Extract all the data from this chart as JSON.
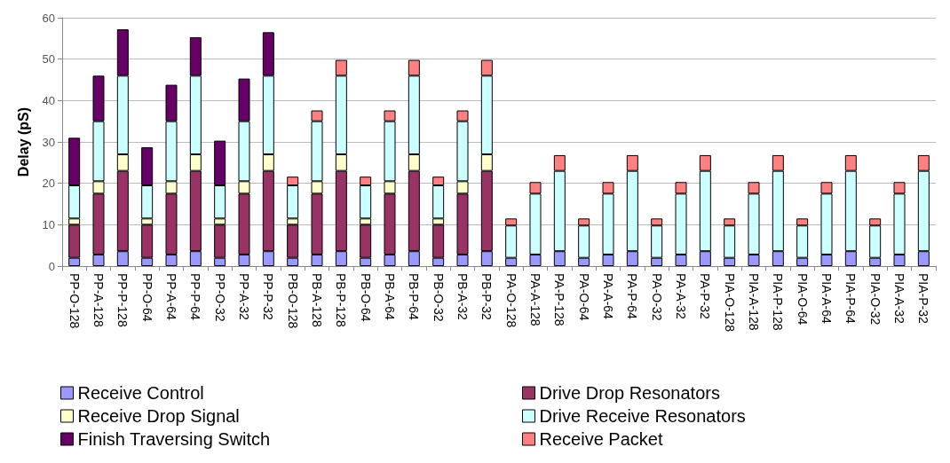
{
  "chart_data": {
    "type": "bar",
    "stacked": true,
    "ylabel": "Delay (pS)",
    "ylim": [
      0,
      60
    ],
    "yticks": [
      0,
      10,
      20,
      30,
      40,
      50,
      60
    ],
    "grid": "y",
    "legend": "bottom",
    "categories": [
      "PP-O-128",
      "PP-A-128",
      "PP-P-128",
      "PP-O-64",
      "PP-A-64",
      "PP-P-64",
      "PP-O-32",
      "PP-A-32",
      "PP-P-32",
      "PB-O-128",
      "PB-A-128",
      "PB-P-128",
      "PB-O-64",
      "PB-A-64",
      "PB-P-64",
      "PB-O-32",
      "PB-A-32",
      "PB-P-32",
      "PA-O-128",
      "PA-A-128",
      "PA-P-128",
      "PA-O-64",
      "PA-A-64",
      "PA-P-64",
      "PA-O-32",
      "PA-A-32",
      "PA-P-32",
      "PIA-O-128",
      "PIA-A-128",
      "PIA-P-128",
      "PIA-O-64",
      "PIA-A-64",
      "PIA-P-64",
      "PIA-O-32",
      "PIA-A-32",
      "PIA-P-32"
    ],
    "series": [
      {
        "name": "Receive Control",
        "color": "#9999ff",
        "values": [
          2,
          2.8,
          3.6,
          2,
          2.8,
          3.6,
          2,
          2.8,
          3.6,
          2,
          2.8,
          3.6,
          2,
          2.8,
          3.6,
          2,
          2.8,
          3.6,
          2,
          2.8,
          3.6,
          2,
          2.8,
          3.6,
          2,
          2.8,
          3.6,
          2,
          2.8,
          3.6,
          2,
          2.8,
          3.6,
          2,
          2.8,
          3.6
        ]
      },
      {
        "name": "Drive Drop Resonators",
        "color": "#993366",
        "values": [
          8,
          14.7,
          19.4,
          8,
          14.7,
          19.4,
          8,
          14.7,
          19.4,
          8,
          14.7,
          19.4,
          8,
          14.7,
          19.4,
          8,
          14.7,
          19.4,
          0,
          0,
          0,
          0,
          0,
          0,
          0,
          0,
          0,
          0,
          0,
          0,
          0,
          0,
          0,
          0,
          0,
          0
        ]
      },
      {
        "name": "Receive Drop Signal",
        "color": "#ffffcc",
        "values": [
          1.5,
          3,
          4,
          1.5,
          3,
          4,
          1.5,
          3,
          4,
          1.5,
          3,
          4,
          1.5,
          3,
          4,
          1.5,
          3,
          4,
          0,
          0,
          0,
          0,
          0,
          0,
          0,
          0,
          0,
          0,
          0,
          0,
          0,
          0,
          0,
          0,
          0,
          0
        ]
      },
      {
        "name": "Drive Receive Resonators",
        "color": "#ccffff",
        "values": [
          8,
          14.5,
          19,
          8,
          14.5,
          19,
          8,
          14.5,
          19,
          8,
          14.5,
          19,
          8,
          14.5,
          19,
          8,
          14.5,
          19,
          7.8,
          14.7,
          19.4,
          7.8,
          14.7,
          19.4,
          7.8,
          14.7,
          19.4,
          7.8,
          14.7,
          19.4,
          7.8,
          14.7,
          19.4,
          7.8,
          14.7,
          19.4
        ]
      },
      {
        "name": "Finish Traversing Switch",
        "color": "#660066",
        "values": [
          11.5,
          11,
          11.2,
          9.2,
          8.8,
          9.3,
          10.8,
          10.3,
          10.5,
          0,
          0,
          0,
          0,
          0,
          0,
          0,
          0,
          0,
          0,
          0,
          0,
          0,
          0,
          0,
          0,
          0,
          0,
          0,
          0,
          0,
          0,
          0,
          0,
          0,
          0,
          0
        ]
      },
      {
        "name": "Receive Packet",
        "color": "#ff8080",
        "values": [
          0,
          0,
          0,
          0,
          0,
          0,
          0,
          0,
          0,
          2.1,
          2.6,
          3.8,
          2.1,
          2.6,
          3.8,
          2.1,
          2.6,
          3.8,
          1.7,
          2.8,
          3.8,
          1.7,
          2.8,
          3.8,
          1.7,
          2.8,
          3.8,
          1.7,
          2.8,
          3.8,
          1.7,
          2.8,
          3.8,
          1.7,
          2.8,
          3.8
        ]
      }
    ]
  }
}
